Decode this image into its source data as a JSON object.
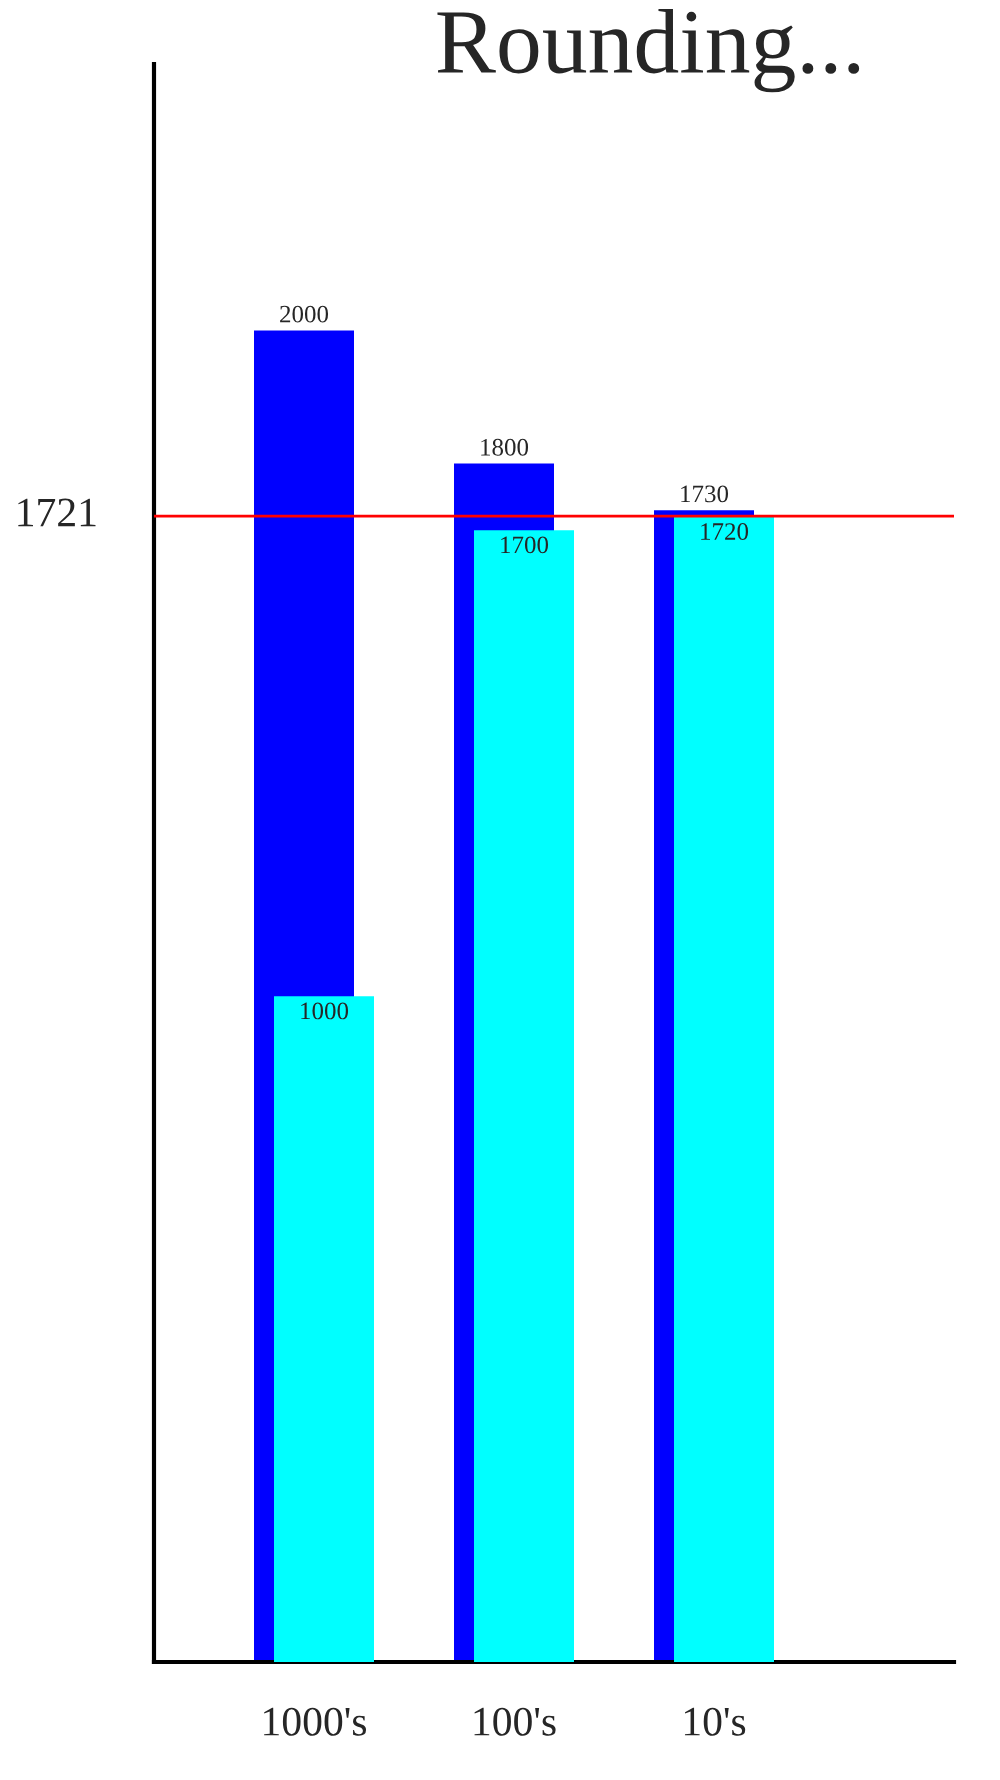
{
  "chart_data": {
    "type": "bar",
    "title": "Rounding...",
    "categories": [
      "1000's",
      "100's",
      "10's"
    ],
    "series": [
      {
        "color": "#0000ff",
        "values": [
          2000,
          1800,
          1730
        ]
      },
      {
        "color": "#00ffff",
        "values": [
          1000,
          1700,
          1720
        ]
      }
    ],
    "ylim": [
      0,
      2400
    ],
    "data_labels": true,
    "tick_labels": "x",
    "ref_lines": [
      {
        "axis": "y",
        "value": 1721,
        "label": "1721",
        "color": "#ff0000"
      }
    ]
  }
}
